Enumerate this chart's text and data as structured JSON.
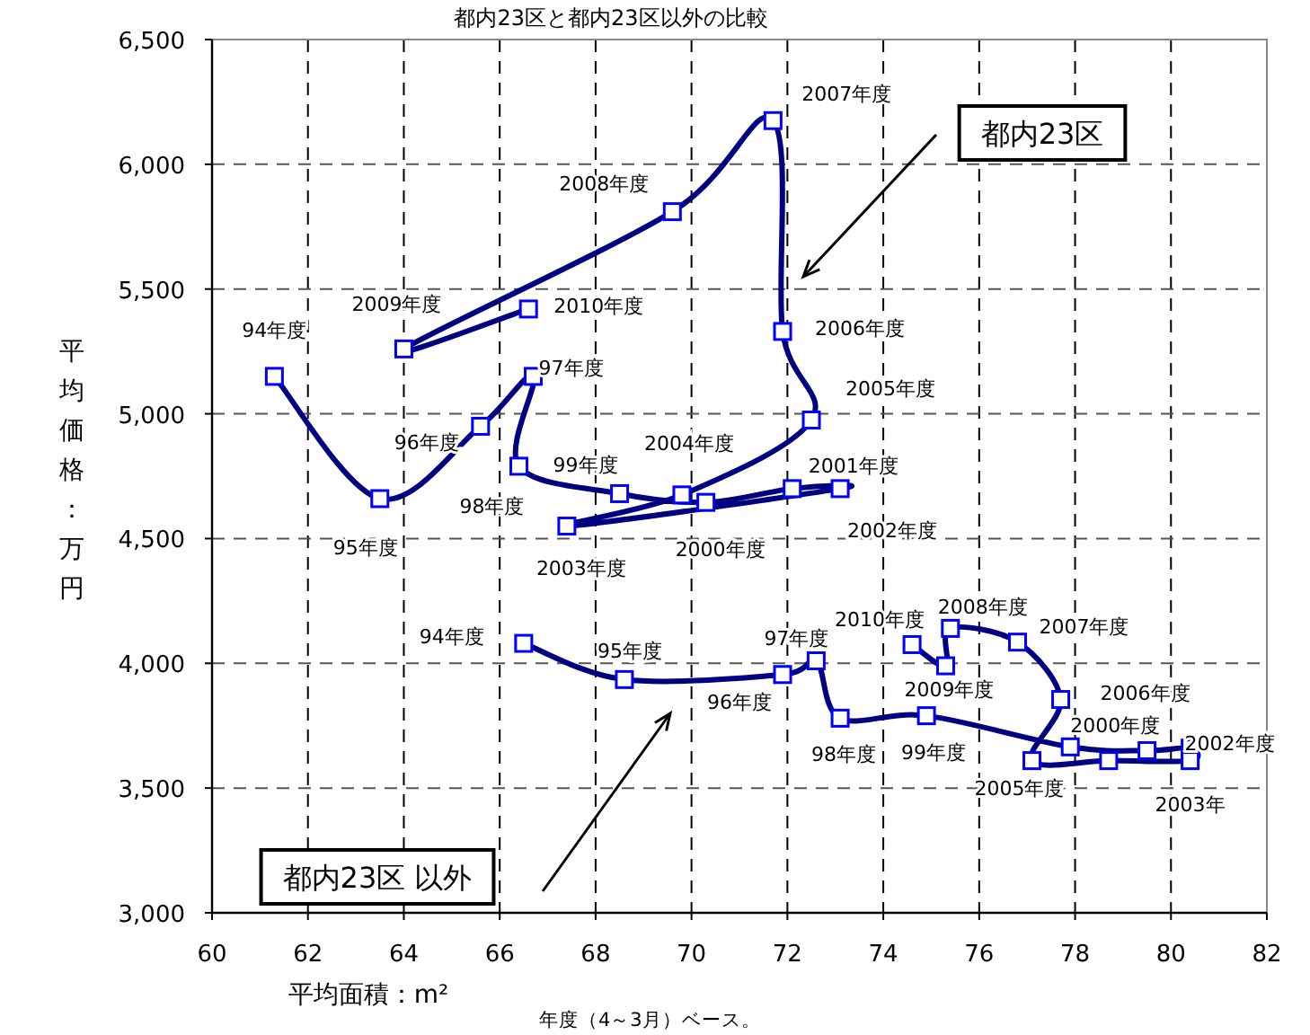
{
  "chart_data": {
    "type": "line",
    "title": "都内23区と都内23区以外の比較",
    "xlabel": "平均面積：m²",
    "ylabel": "平均価格：万円",
    "xlim": [
      60,
      82
    ],
    "xticks": [
      60,
      62,
      64,
      66,
      68,
      70,
      72,
      74,
      76,
      78,
      80,
      82
    ],
    "ylim": [
      3000,
      6500
    ],
    "yticks": [
      {
        "value": 3000,
        "label": "3,000"
      },
      {
        "value": 3500,
        "label": "3,500"
      },
      {
        "value": 4000,
        "label": "4,000"
      },
      {
        "value": 4500,
        "label": "4,500"
      },
      {
        "value": 5000,
        "label": "5,000"
      },
      {
        "value": 5500,
        "label": "5,500"
      },
      {
        "value": 6000,
        "label": "6,000"
      },
      {
        "value": 6500,
        "label": "6,500"
      }
    ],
    "grid": true,
    "marker": "square",
    "series": [
      {
        "color": "#000080",
        "x": [
          61.3,
          63.5,
          65.6,
          66.7,
          66.4,
          68.5,
          70.3,
          72.1,
          73.1,
          67.4,
          69.8,
          72.5,
          71.9,
          71.7,
          69.6,
          64.0,
          66.6
        ],
        "values": [
          5150,
          4660,
          4950,
          5150,
          4790,
          4680,
          4645,
          4700,
          4700,
          4550,
          4675,
          4975,
          5330,
          6175,
          5810,
          5260,
          5420
        ]
      },
      {
        "color": "#000080",
        "x": [
          66.5,
          68.6,
          71.9,
          72.6,
          73.1,
          74.9,
          77.9,
          79.5,
          80.4,
          80.4,
          78.7,
          77.1,
          77.7,
          76.8,
          75.4,
          75.3,
          74.6
        ],
        "values": [
          4080,
          3935,
          3955,
          4010,
          3780,
          3790,
          3665,
          3650,
          3660,
          3610,
          3610,
          3610,
          3855,
          4085,
          4140,
          3990,
          4075
        ]
      }
    ],
    "annotations": [
      {
        "text": "94年度",
        "x": 61.3,
        "y": 5150
      },
      {
        "text": "95年度",
        "x": 63.5,
        "y": 4660
      },
      {
        "text": "96年度",
        "x": 65.6,
        "y": 4950
      },
      {
        "text": "97年度",
        "x": 66.7,
        "y": 5150
      },
      {
        "text": "98年度",
        "x": 66.4,
        "y": 4790
      },
      {
        "text": "99年度",
        "x": 68.5,
        "y": 4680
      },
      {
        "text": "2000年度",
        "x": 70.3,
        "y": 4645
      },
      {
        "text": "2001年度",
        "x": 72.1,
        "y": 4700
      },
      {
        "text": "2002年度",
        "x": 73.1,
        "y": 4700
      },
      {
        "text": "2003年度",
        "x": 67.4,
        "y": 4550
      },
      {
        "text": "2004年度",
        "x": 69.8,
        "y": 4675
      },
      {
        "text": "2005年度",
        "x": 72.5,
        "y": 4975
      },
      {
        "text": "2006年度",
        "x": 71.9,
        "y": 5330
      },
      {
        "text": "2007年度",
        "x": 71.7,
        "y": 6175
      },
      {
        "text": "2008年度",
        "x": 69.6,
        "y": 5810
      },
      {
        "text": "2009年度",
        "x": 64.0,
        "y": 5260
      },
      {
        "text": "2010年度",
        "x": 66.6,
        "y": 5420
      },
      {
        "text": "94年度",
        "x": 66.5,
        "y": 4080
      },
      {
        "text": "95年度",
        "x": 68.6,
        "y": 3935
      },
      {
        "text": "96年度",
        "x": 71.9,
        "y": 3955
      },
      {
        "text": "97年度",
        "x": 72.6,
        "y": 4010
      },
      {
        "text": "98年度",
        "x": 73.1,
        "y": 3780
      },
      {
        "text": "99年度",
        "x": 74.9,
        "y": 3790
      },
      {
        "text": "2000年度",
        "x": 77.9,
        "y": 3665
      },
      {
        "text": "2002年度",
        "x": 80.4,
        "y": 3660
      },
      {
        "text": "2003年",
        "x": 80.4,
        "y": 3610
      },
      {
        "text": "2005年度",
        "x": 77.1,
        "y": 3610
      },
      {
        "text": "2006年度",
        "x": 77.7,
        "y": 3855
      },
      {
        "text": "2007年度",
        "x": 76.8,
        "y": 4085
      },
      {
        "text": "2008年度",
        "x": 75.4,
        "y": 4140
      },
      {
        "text": "2009年度",
        "x": 75.3,
        "y": 3990
      },
      {
        "text": "2010年度",
        "x": 74.6,
        "y": 4075
      },
      "都内23区",
      "都内23区 以外",
      "年度（4～3月）ベース。"
    ]
  }
}
